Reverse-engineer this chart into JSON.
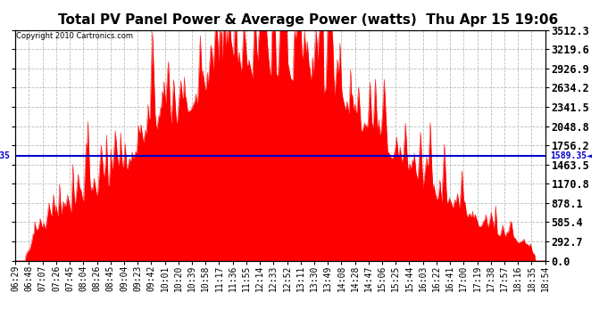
{
  "title": "Total PV Panel Power & Average Power (watts)  Thu Apr 15 19:06",
  "copyright": "Copyright 2010 Cartronics.com",
  "avg_value": 1589.35,
  "ymax": 3512.3,
  "yticks": [
    0.0,
    292.7,
    585.4,
    878.1,
    1170.8,
    1463.5,
    1756.2,
    2048.8,
    2341.5,
    2634.2,
    2926.9,
    3219.6,
    3512.3
  ],
  "fill_color": "#FF0000",
  "line_color": "#FF0000",
  "avg_line_color": "#0000CC",
  "background_color": "#FFFFFF",
  "plot_bg_color": "#FFFFFF",
  "grid_color": "#BBBBBB",
  "title_fontsize": 11,
  "xlabel_fontsize": 7,
  "ylabel_fontsize": 8.5,
  "x_labels": [
    "06:29",
    "06:48",
    "07:07",
    "07:26",
    "07:45",
    "08:04",
    "08:26",
    "08:45",
    "09:04",
    "09:23",
    "09:42",
    "10:01",
    "10:20",
    "10:39",
    "10:58",
    "11:17",
    "11:36",
    "11:55",
    "12:14",
    "12:33",
    "12:52",
    "13:11",
    "13:30",
    "13:49",
    "14:08",
    "14:28",
    "14:47",
    "15:06",
    "15:25",
    "15:44",
    "16:03",
    "16:22",
    "16:41",
    "17:00",
    "17:19",
    "17:38",
    "17:57",
    "18:16",
    "18:35",
    "18:54"
  ]
}
